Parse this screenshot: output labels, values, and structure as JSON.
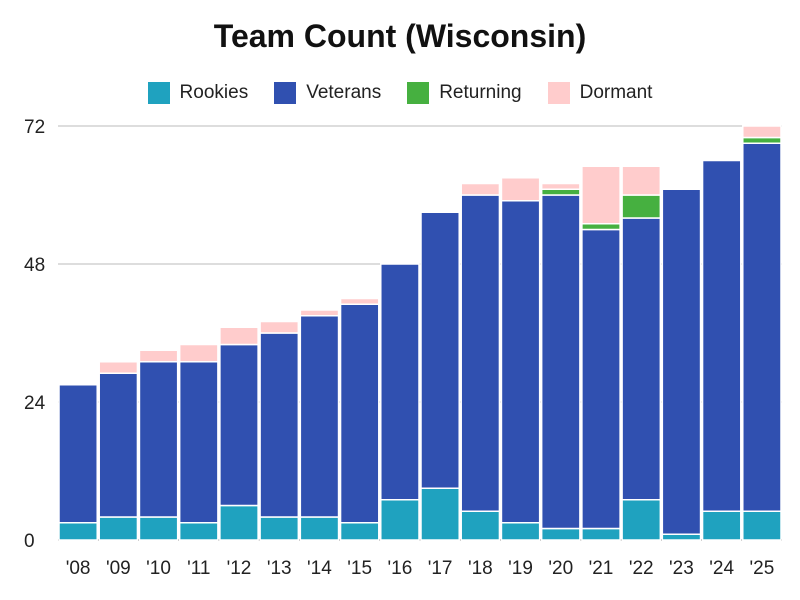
{
  "chart_data": {
    "type": "bar",
    "stacked": true,
    "title": "Team Count (Wisconsin)",
    "xlabel": "",
    "ylabel": "",
    "ylim": [
      0,
      72
    ],
    "yticks": [
      0,
      24,
      48,
      72
    ],
    "grid": true,
    "legend_position": "top-center",
    "categories": [
      "'08",
      "'09",
      "'10",
      "'11",
      "'12",
      "'13",
      "'14",
      "'15",
      "'16",
      "'17",
      "'18",
      "'19",
      "'20",
      "'21",
      "'22",
      "'23",
      "'24",
      "'25"
    ],
    "series": [
      {
        "name": "Rookies",
        "color": "#1fa2bf",
        "values": [
          3,
          4,
          4,
          3,
          6,
          4,
          4,
          3,
          7,
          9,
          5,
          3,
          2,
          2,
          7,
          1,
          5,
          5
        ]
      },
      {
        "name": "Veterans",
        "color": "#3050b0",
        "values": [
          24,
          25,
          27,
          28,
          28,
          32,
          35,
          38,
          41,
          48,
          55,
          56,
          58,
          52,
          49,
          60,
          61,
          64
        ]
      },
      {
        "name": "Returning",
        "color": "#46b040",
        "values": [
          0,
          0,
          0,
          0,
          0,
          0,
          0,
          0,
          0,
          0,
          0,
          0,
          1,
          1,
          4,
          0,
          0,
          1
        ]
      },
      {
        "name": "Dormant",
        "color": "#ffcccc",
        "values": [
          0,
          2,
          2,
          3,
          3,
          2,
          1,
          1,
          0,
          0,
          2,
          4,
          1,
          10,
          5,
          0,
          0,
          2
        ]
      }
    ]
  }
}
